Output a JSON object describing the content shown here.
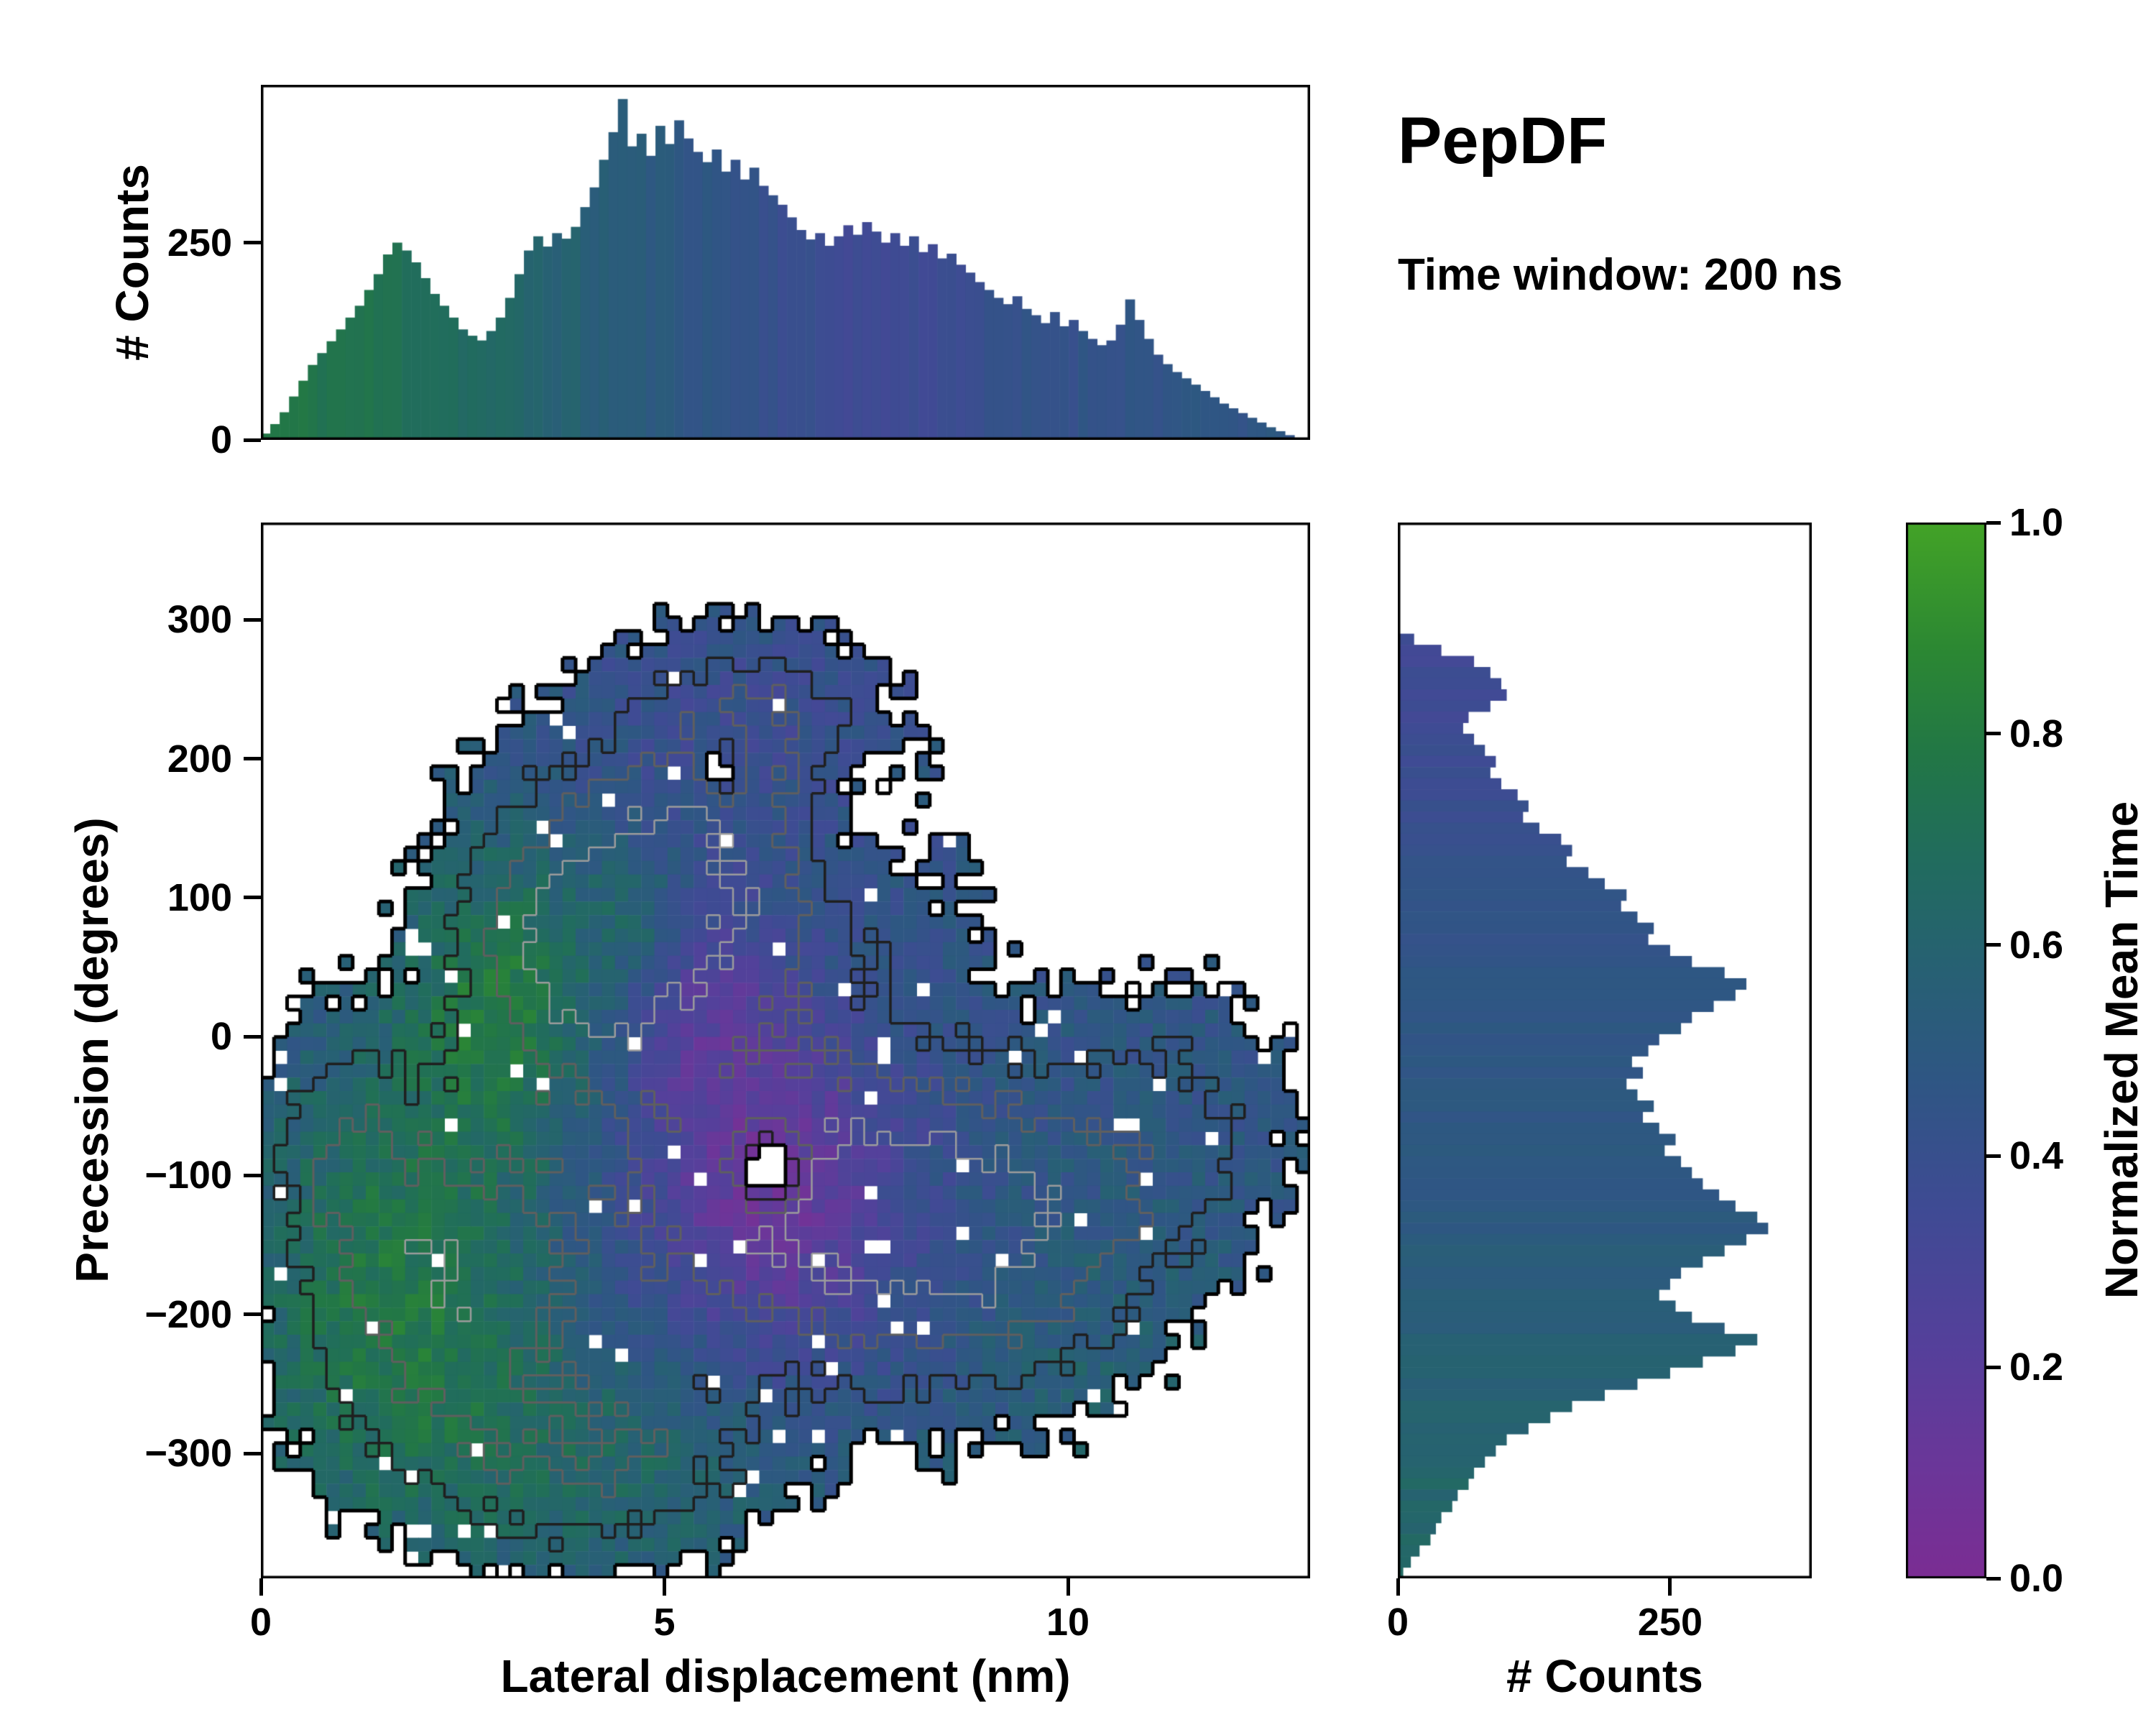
{
  "title": "PepDF",
  "subtitle": "Time window: 200 ns",
  "colormap": {
    "stops": [
      [
        0.0,
        "#7b2d93"
      ],
      [
        0.1,
        "#6c3699"
      ],
      [
        0.22,
        "#55409b"
      ],
      [
        0.35,
        "#3f4b94"
      ],
      [
        0.47,
        "#2f5684"
      ],
      [
        0.58,
        "#276173"
      ],
      [
        0.68,
        "#216c5e"
      ],
      [
        0.78,
        "#227746"
      ],
      [
        0.88,
        "#2c8833"
      ],
      [
        1.0,
        "#43a327"
      ]
    ]
  },
  "colorbar": {
    "label": "Normalized Mean Time",
    "tick_values": [
      0,
      0.2,
      0.4,
      0.6,
      0.8,
      1
    ],
    "tick_labels": [
      "0.0",
      "0.2",
      "0.4",
      "0.6",
      "0.8",
      "1.0"
    ]
  },
  "chart_data": [
    {
      "id": "top-histogram",
      "type": "bar",
      "ylabel": "# Counts",
      "xlim": [
        0,
        13
      ],
      "ylim": [
        0,
        450
      ],
      "ytick_values": [
        0,
        250
      ],
      "ytick_labels": [
        "0",
        "250"
      ],
      "x_start": 0,
      "bin_width": 0.1164,
      "seed": 11,
      "color_points": [
        [
          0,
          0.78
        ],
        [
          1.2,
          0.74
        ],
        [
          2.2,
          0.7
        ],
        [
          3.2,
          0.62
        ],
        [
          4.2,
          0.55
        ],
        [
          5.0,
          0.5
        ],
        [
          6.0,
          0.44
        ],
        [
          6.8,
          0.38
        ],
        [
          7.6,
          0.34
        ],
        [
          8.6,
          0.38
        ],
        [
          9.6,
          0.43
        ],
        [
          10.6,
          0.45
        ],
        [
          12.8,
          0.47
        ]
      ],
      "counts": [
        8,
        20,
        35,
        55,
        75,
        95,
        110,
        125,
        140,
        155,
        170,
        190,
        210,
        235,
        250,
        240,
        225,
        205,
        185,
        170,
        155,
        140,
        132,
        126,
        138,
        155,
        180,
        210,
        240,
        258,
        245,
        262,
        255,
        270,
        295,
        320,
        355,
        390,
        432,
        372,
        388,
        360,
        398,
        375,
        405,
        382,
        365,
        352,
        368,
        340,
        355,
        330,
        345,
        322,
        310,
        298,
        282,
        266,
        254,
        262,
        246,
        258,
        272,
        260,
        276,
        264,
        250,
        262,
        246,
        258,
        238,
        248,
        230,
        236,
        222,
        212,
        200,
        190,
        180,
        172,
        182,
        166,
        158,
        148,
        162,
        144,
        152,
        138,
        128,
        120,
        126,
        146,
        178,
        152,
        128,
        108,
        96,
        86,
        78,
        70,
        62,
        54,
        46,
        40,
        34,
        28,
        22,
        16,
        11,
        6
      ]
    },
    {
      "id": "main-heatmap",
      "type": "heatmap",
      "xlabel": "Lateral displacement (nm)",
      "ylabel": "Precession (degrees)",
      "xlim": [
        0,
        13
      ],
      "ylim": [
        -390,
        370
      ],
      "xtick_values": [
        0,
        5,
        10
      ],
      "xtick_labels": [
        "0",
        "5",
        "10"
      ],
      "ytick_values": [
        300,
        200,
        100,
        0,
        -100,
        -200,
        -300
      ],
      "ytick_labels": [
        "300",
        "200",
        "100",
        "0",
        "−100",
        "−200",
        "−300"
      ],
      "grid": {
        "nx": 80,
        "ny": 78
      },
      "seed": 77,
      "density_noise": 0.1,
      "value_noise": 0.17,
      "hole_base": 0.022,
      "hole_edge": 0.25,
      "density_blobs": [
        {
          "x": 5.5,
          "y": 120,
          "sx": 2.4,
          "sy": 120,
          "a": 1.0
        },
        {
          "x": 6.5,
          "y": -120,
          "sx": 2.6,
          "sy": 130,
          "a": 1.05
        },
        {
          "x": 2.2,
          "y": -180,
          "sx": 1.8,
          "sy": 140,
          "a": 1.0
        },
        {
          "x": 4.3,
          "y": -310,
          "sx": 2.0,
          "sy": 72,
          "a": 0.65
        },
        {
          "x": 9.2,
          "y": -140,
          "sx": 2.0,
          "sy": 115,
          "a": 0.9
        },
        {
          "x": 6.2,
          "y": 230,
          "sx": 1.4,
          "sy": 60,
          "a": 0.55
        },
        {
          "x": 3.9,
          "y": 60,
          "sx": 1.5,
          "sy": 95,
          "a": 0.85
        },
        {
          "x": 11.4,
          "y": -60,
          "sx": 1.4,
          "sy": 100,
          "a": 0.5
        },
        {
          "x": 0.9,
          "y": -70,
          "sx": 0.9,
          "sy": 90,
          "a": 0.5
        },
        {
          "x": 7.3,
          "y": 160,
          "sx": 0.7,
          "sy": 55,
          "a": -0.45
        },
        {
          "x": 6.3,
          "y": -95,
          "sx": 0.38,
          "sy": 26,
          "a": -1.3
        },
        {
          "x": 5.7,
          "y": 195,
          "sx": 0.3,
          "sy": 22,
          "a": -0.9
        }
      ],
      "value_base": 0.47,
      "value_blobs": [
        {
          "x": 1.6,
          "y": -190,
          "sx": 2.0,
          "sy": 170,
          "a": 0.3
        },
        {
          "x": 3.0,
          "y": 30,
          "sx": 1.3,
          "sy": 110,
          "a": 0.3
        },
        {
          "x": 6.3,
          "y": -110,
          "sx": 1.7,
          "sy": 130,
          "a": -0.36
        },
        {
          "x": 5.4,
          "y": 30,
          "sx": 1.0,
          "sy": 80,
          "a": -0.18
        },
        {
          "x": 4.5,
          "y": -310,
          "sx": 2.5,
          "sy": 100,
          "a": 0.15
        },
        {
          "x": 6.0,
          "y": 220,
          "sx": 2.0,
          "sy": 90,
          "a": -0.09
        },
        {
          "x": 10.8,
          "y": -260,
          "sx": 1.8,
          "sy": 130,
          "a": 0.1
        },
        {
          "x": 4.7,
          "y": 85,
          "sx": 0.55,
          "sy": 45,
          "a": 0.18
        }
      ],
      "contours": [
        {
          "level": 0.22,
          "color": "#000000",
          "width": 5
        },
        {
          "level": 0.52,
          "color": "#1f1f1f",
          "width": 3.5
        },
        {
          "level": 0.82,
          "color": "#5f5f5f",
          "width": 3
        },
        {
          "level": 1.12,
          "color": "#9c9c9c",
          "width": 2.5
        }
      ]
    },
    {
      "id": "right-histogram",
      "type": "barh",
      "xlabel": "# Counts",
      "xlim": [
        0,
        380
      ],
      "ylim": [
        -390,
        370
      ],
      "xtick_values": [
        0,
        250
      ],
      "xtick_labels": [
        "0",
        "250"
      ],
      "y_start": 370,
      "bin_height": 8,
      "seed": 23,
      "color_points": [
        [
          -390,
          0.63
        ],
        [
          -320,
          0.62
        ],
        [
          -260,
          0.59
        ],
        [
          -200,
          0.55
        ],
        [
          -140,
          0.51
        ],
        [
          -80,
          0.49
        ],
        [
          0,
          0.47
        ],
        [
          60,
          0.45
        ],
        [
          120,
          0.42
        ],
        [
          180,
          0.38
        ],
        [
          250,
          0.34
        ],
        [
          370,
          0.38
        ]
      ],
      "counts": [
        0,
        0,
        0,
        0,
        0,
        0,
        0,
        0,
        0,
        0,
        15,
        40,
        70,
        85,
        95,
        100,
        85,
        65,
        60,
        70,
        80,
        90,
        85,
        95,
        110,
        120,
        115,
        130,
        150,
        160,
        155,
        175,
        190,
        210,
        205,
        220,
        235,
        230,
        250,
        270,
        300,
        320,
        310,
        290,
        270,
        260,
        240,
        230,
        215,
        225,
        210,
        220,
        235,
        225,
        240,
        255,
        245,
        260,
        270,
        280,
        295,
        310,
        330,
        340,
        320,
        300,
        280,
        260,
        250,
        240,
        255,
        270,
        300,
        330,
        310,
        280,
        250,
        220,
        190,
        160,
        140,
        120,
        100,
        90,
        80,
        70,
        65,
        55,
        50,
        40,
        35,
        30,
        20,
        12,
        5
      ]
    }
  ]
}
